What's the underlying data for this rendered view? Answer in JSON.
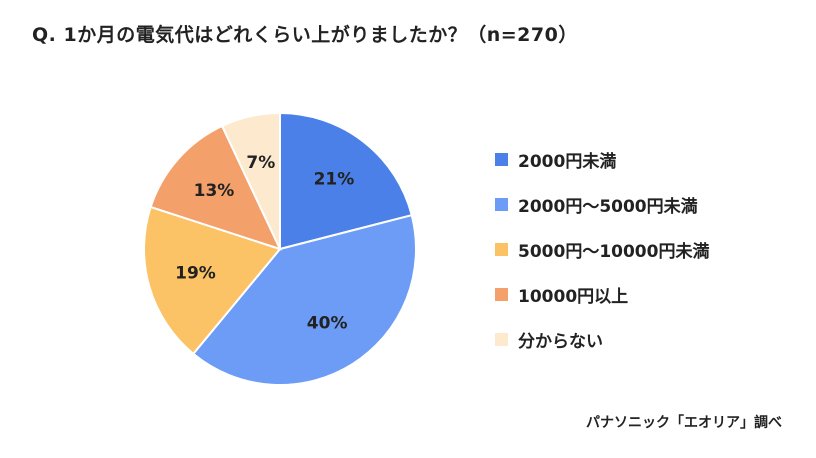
{
  "chart_data": {
    "type": "pie",
    "title": "Q. 1か月の電気代はどれくらい上がりましたか？（n=270）",
    "categories": [
      "2000円未満",
      "2000円〜5000円未満",
      "5000円〜10000円未満",
      "10000円以上",
      "分からない"
    ],
    "values": [
      21,
      40,
      19,
      13,
      7
    ],
    "value_labels": [
      "21%",
      "40%",
      "19%",
      "13%",
      "7%"
    ],
    "colors": [
      "#4a80e8",
      "#6c9cf6",
      "#fbc366",
      "#f3a06a",
      "#fde9cd"
    ],
    "legend_position": "right",
    "source": "パナソニック「エオリア」調べ"
  }
}
